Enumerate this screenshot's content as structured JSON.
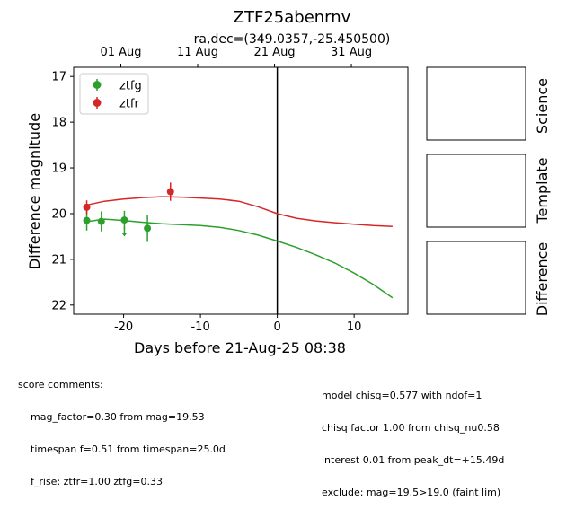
{
  "chart_data": {
    "type": "scatter",
    "title": "ZTF25abenrnv",
    "subtitle": "ra,dec=(349.0357,-25.450500)",
    "xlabel": "Days before 21-Aug-25 08:38",
    "ylabel": "Difference magnitude",
    "xlim": [
      -26.5,
      17
    ],
    "ylim": [
      22.2,
      16.8
    ],
    "y_inverted": true,
    "x_ticks": [
      -20,
      -10,
      0,
      10
    ],
    "y_ticks": [
      17,
      18,
      19,
      20,
      21,
      22
    ],
    "top_axis_ticks": [
      {
        "label": "01 Aug",
        "x": -20.36
      },
      {
        "label": "11 Aug",
        "x": -10.36
      },
      {
        "label": "21 Aug",
        "x": -0.36
      },
      {
        "label": "31 Aug",
        "x": 9.64
      }
    ],
    "vline_x": 0,
    "legend_position": "top-left",
    "grid": false,
    "series": [
      {
        "name": "ztfg",
        "color": "#2ca02c",
        "points": [
          {
            "x": -24.8,
            "y": 20.15,
            "err": 0.22
          },
          {
            "x": -22.9,
            "y": 20.17,
            "err": 0.22
          },
          {
            "x": -19.9,
            "y": 20.14,
            "err": 0.2
          },
          {
            "x": -16.9,
            "y": 20.32,
            "err": 0.3
          }
        ],
        "upper_limits": [
          {
            "x": -19.9,
            "y": 20.42
          }
        ],
        "model_curve": [
          {
            "x": -25,
            "y": 20.18
          },
          {
            "x": -22.5,
            "y": 20.12
          },
          {
            "x": -20,
            "y": 20.15
          },
          {
            "x": -17.5,
            "y": 20.19
          },
          {
            "x": -15,
            "y": 20.22
          },
          {
            "x": -12.5,
            "y": 20.24
          },
          {
            "x": -10,
            "y": 20.26
          },
          {
            "x": -7.5,
            "y": 20.3
          },
          {
            "x": -5,
            "y": 20.37
          },
          {
            "x": -2.5,
            "y": 20.47
          },
          {
            "x": 0,
            "y": 20.6
          },
          {
            "x": 2.5,
            "y": 20.74
          },
          {
            "x": 5,
            "y": 20.9
          },
          {
            "x": 7.5,
            "y": 21.08
          },
          {
            "x": 10,
            "y": 21.3
          },
          {
            "x": 12.5,
            "y": 21.55
          },
          {
            "x": 15,
            "y": 21.84
          }
        ]
      },
      {
        "name": "ztfr",
        "color": "#d62728",
        "points": [
          {
            "x": -24.8,
            "y": 19.86,
            "err": 0.15
          },
          {
            "x": -13.9,
            "y": 19.52,
            "err": 0.2
          }
        ],
        "upper_limits": [],
        "model_curve": [
          {
            "x": -25,
            "y": 19.82
          },
          {
            "x": -22.5,
            "y": 19.73
          },
          {
            "x": -20,
            "y": 19.68
          },
          {
            "x": -17.5,
            "y": 19.65
          },
          {
            "x": -15,
            "y": 19.63
          },
          {
            "x": -12.5,
            "y": 19.64
          },
          {
            "x": -10,
            "y": 19.66
          },
          {
            "x": -7.5,
            "y": 19.68
          },
          {
            "x": -5,
            "y": 19.73
          },
          {
            "x": -2.5,
            "y": 19.85
          },
          {
            "x": 0,
            "y": 20.0
          },
          {
            "x": 2.5,
            "y": 20.1
          },
          {
            "x": 5,
            "y": 20.16
          },
          {
            "x": 7.5,
            "y": 20.2
          },
          {
            "x": 10,
            "y": 20.23
          },
          {
            "x": 12.5,
            "y": 20.26
          },
          {
            "x": 15,
            "y": 20.28
          }
        ]
      }
    ]
  },
  "stamps": [
    {
      "label": "Science"
    },
    {
      "label": "Template"
    },
    {
      "label": "Difference"
    }
  ],
  "comments": {
    "left_header": "score comments:",
    "left_lines": [
      "mag_factor=0.30 from mag=19.53",
      "timespan f=0.51 from timespan=25.0d",
      "f_rise: ztfr=1.00 ztfg=0.33"
    ],
    "right_lines": [
      "model chisq=0.577 with ndof=1",
      "chisq factor 1.00 from chisq_nu0.58",
      "interest 0.01 from peak_dt=+15.49d",
      "exclude: mag=19.5>19.0 (faint lim)"
    ]
  }
}
